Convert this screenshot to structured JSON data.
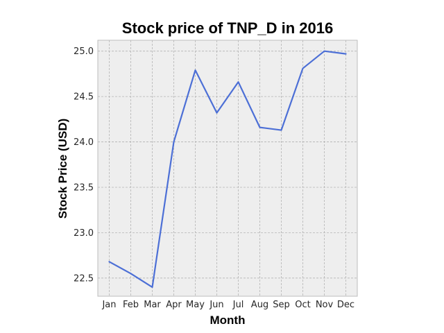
{
  "chart_data": {
    "type": "line",
    "title": "Stock price of TNP_D in 2016",
    "xlabel": "Month",
    "ylabel": "Stock Price (USD)",
    "categories": [
      "Jan",
      "Feb",
      "Mar",
      "Apr",
      "May",
      "Jun",
      "Jul",
      "Aug",
      "Sep",
      "Oct",
      "Nov",
      "Dec"
    ],
    "series": [
      {
        "values": [
          22.68,
          22.55,
          22.4,
          24.0,
          24.79,
          24.32,
          24.66,
          24.16,
          24.13,
          24.81,
          25.0,
          24.97
        ]
      }
    ],
    "ylim": [
      22.3,
      25.12
    ],
    "yticks": [
      "22.5",
      "23.0",
      "23.5",
      "24.0",
      "24.5",
      "25.0"
    ],
    "grid": true,
    "colors": {
      "line": "#4c6fd6",
      "plot_background": "#eeeeee",
      "frame": "#bcbcbc"
    }
  }
}
